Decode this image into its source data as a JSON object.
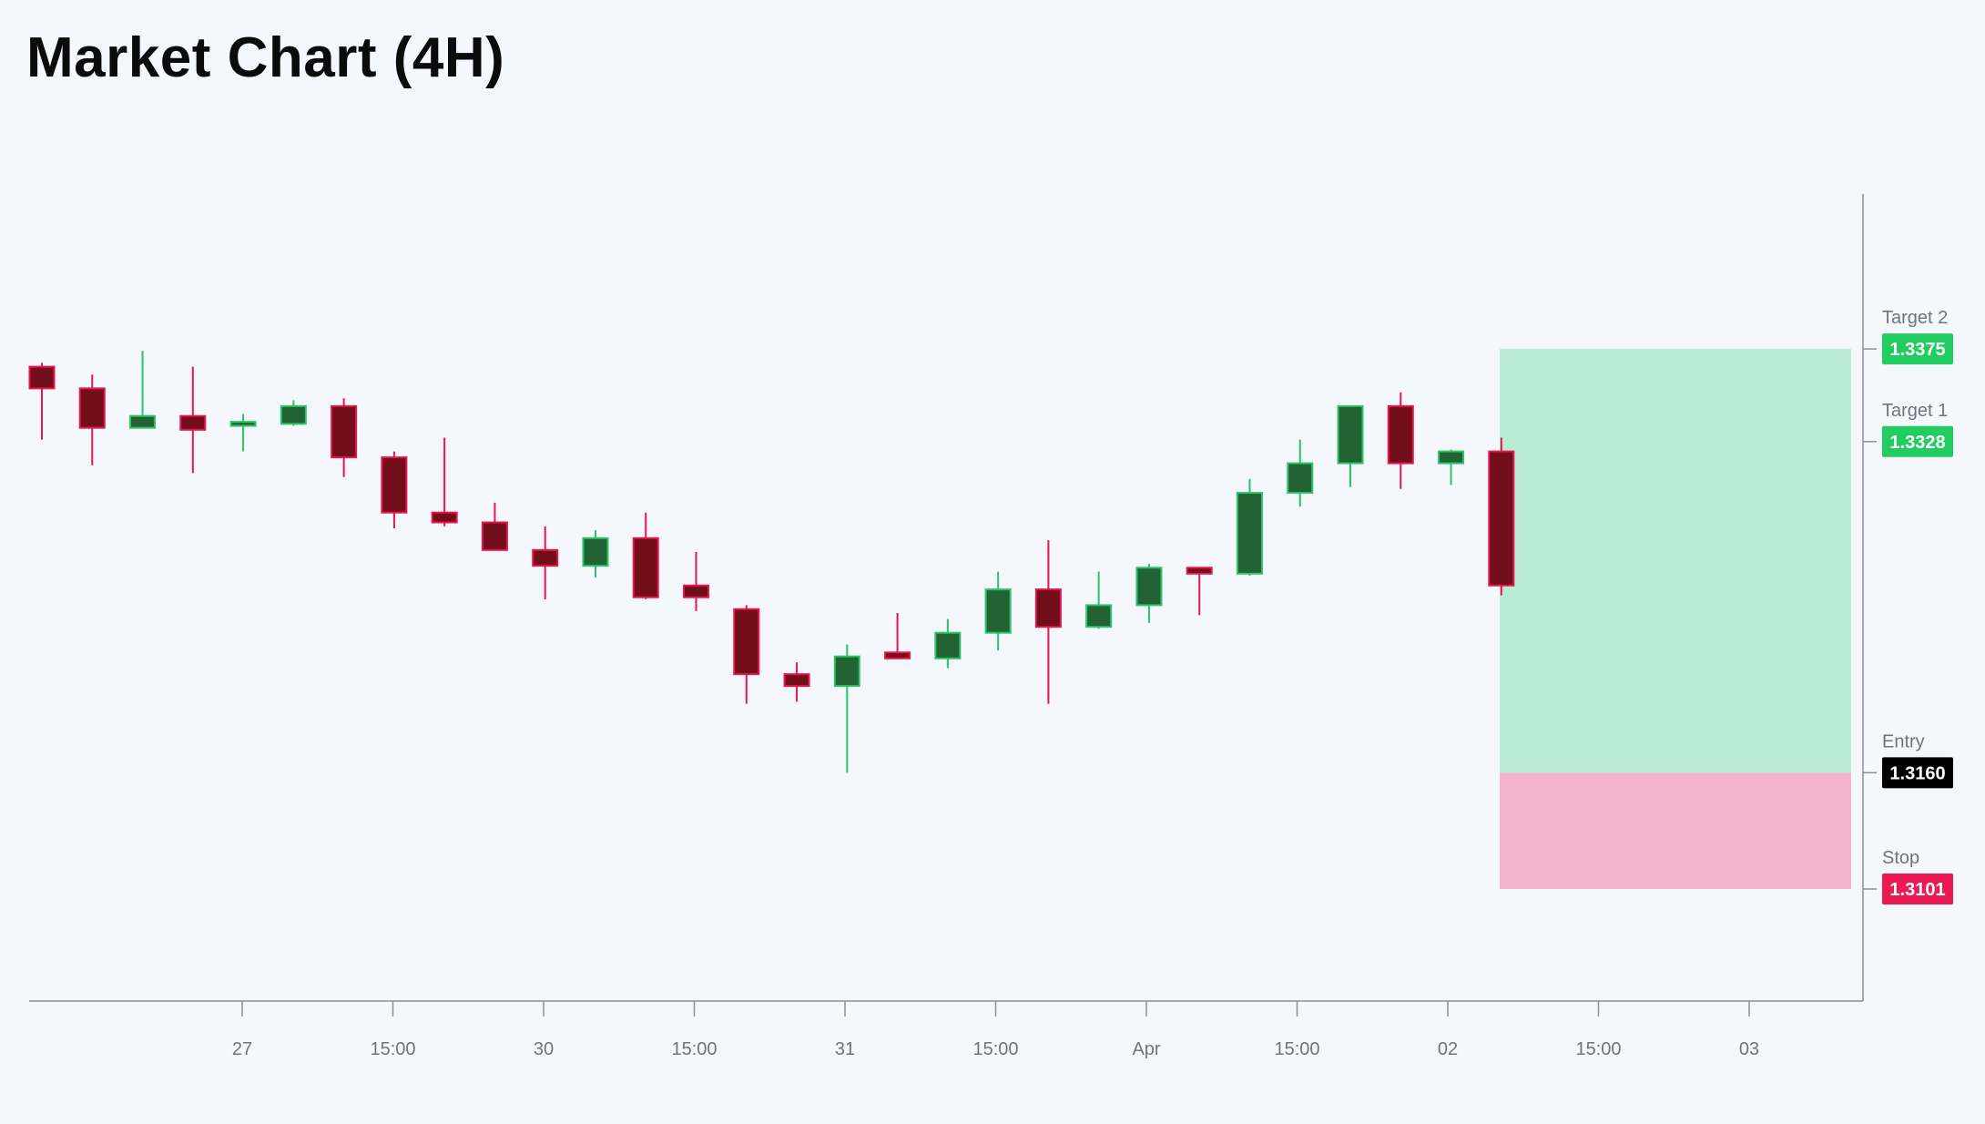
{
  "title": "Market Chart (4H)",
  "colors": {
    "background": "#f4f7fc",
    "up_body": "#236333",
    "up_border": "#2cc469",
    "down_body": "#720d1a",
    "down_border": "#e8154f",
    "target_zone": "#b9ecd2",
    "stop_zone": "#f4b4cb",
    "axis": "#8a8f9c",
    "target_badge": "#22cc60",
    "entry_badge": "#000000",
    "stop_badge": "#ec1a52"
  },
  "chart_data": {
    "type": "candlestick",
    "interval": "4H",
    "x_tick_labels": [
      "27",
      "15:00",
      "30",
      "15:00",
      "31",
      "15:00",
      "Apr",
      "15:00",
      "02",
      "15:00",
      "03"
    ],
    "ylim": [
      1.3046,
      1.3455
    ],
    "candles": [
      {
        "o": 1.3366,
        "h": 1.3368,
        "l": 1.3329,
        "c": 1.3355
      },
      {
        "o": 1.3355,
        "h": 1.3362,
        "l": 1.3316,
        "c": 1.3335
      },
      {
        "o": 1.3335,
        "h": 1.3374,
        "l": 1.3335,
        "c": 1.3341
      },
      {
        "o": 1.3341,
        "h": 1.3366,
        "l": 1.3312,
        "c": 1.3334
      },
      {
        "o": 1.3336,
        "h": 1.3342,
        "l": 1.3323,
        "c": 1.3338
      },
      {
        "o": 1.3337,
        "h": 1.3349,
        "l": 1.3336,
        "c": 1.3346
      },
      {
        "o": 1.3346,
        "h": 1.335,
        "l": 1.331,
        "c": 1.332
      },
      {
        "o": 1.332,
        "h": 1.3323,
        "l": 1.3284,
        "c": 1.3292
      },
      {
        "o": 1.3292,
        "h": 1.333,
        "l": 1.3285,
        "c": 1.3287
      },
      {
        "o": 1.3287,
        "h": 1.3297,
        "l": 1.3273,
        "c": 1.3273
      },
      {
        "o": 1.3273,
        "h": 1.3285,
        "l": 1.3248,
        "c": 1.3265
      },
      {
        "o": 1.3265,
        "h": 1.3283,
        "l": 1.3259,
        "c": 1.3279
      },
      {
        "o": 1.3279,
        "h": 1.3292,
        "l": 1.3248,
        "c": 1.3249
      },
      {
        "o": 1.3255,
        "h": 1.3272,
        "l": 1.3242,
        "c": 1.3249
      },
      {
        "o": 1.3243,
        "h": 1.3245,
        "l": 1.3195,
        "c": 1.321
      },
      {
        "o": 1.321,
        "h": 1.3216,
        "l": 1.3196,
        "c": 1.3204
      },
      {
        "o": 1.3204,
        "h": 1.3225,
        "l": 1.316,
        "c": 1.3219
      },
      {
        "o": 1.3221,
        "h": 1.3241,
        "l": 1.3218,
        "c": 1.3218
      },
      {
        "o": 1.3218,
        "h": 1.3238,
        "l": 1.3213,
        "c": 1.3231
      },
      {
        "o": 1.3231,
        "h": 1.3262,
        "l": 1.3222,
        "c": 1.3253
      },
      {
        "o": 1.3253,
        "h": 1.3278,
        "l": 1.3195,
        "c": 1.3234
      },
      {
        "o": 1.3234,
        "h": 1.3262,
        "l": 1.3233,
        "c": 1.3245
      },
      {
        "o": 1.3245,
        "h": 1.3266,
        "l": 1.3236,
        "c": 1.3264
      },
      {
        "o": 1.3264,
        "h": 1.3264,
        "l": 1.324,
        "c": 1.3261
      },
      {
        "o": 1.3261,
        "h": 1.3309,
        "l": 1.326,
        "c": 1.3302
      },
      {
        "o": 1.3302,
        "h": 1.3329,
        "l": 1.3295,
        "c": 1.3317
      },
      {
        "o": 1.3317,
        "h": 1.3346,
        "l": 1.3305,
        "c": 1.3346
      },
      {
        "o": 1.3346,
        "h": 1.3353,
        "l": 1.3304,
        "c": 1.3317
      },
      {
        "o": 1.3317,
        "h": 1.3324,
        "l": 1.3306,
        "c": 1.3323
      },
      {
        "o": 1.3323,
        "h": 1.333,
        "l": 1.325,
        "c": 1.3255
      }
    ],
    "position": {
      "target2": {
        "label": "Target 2",
        "value": 1.3375,
        "display": "1.3375"
      },
      "target1": {
        "label": "Target 1",
        "value": 1.3328,
        "display": "1.3328"
      },
      "entry": {
        "label": "Entry",
        "value": 1.316,
        "display": "1.3160"
      },
      "stop": {
        "label": "Stop",
        "value": 1.3101,
        "display": "1.3101"
      }
    },
    "grid": false
  }
}
